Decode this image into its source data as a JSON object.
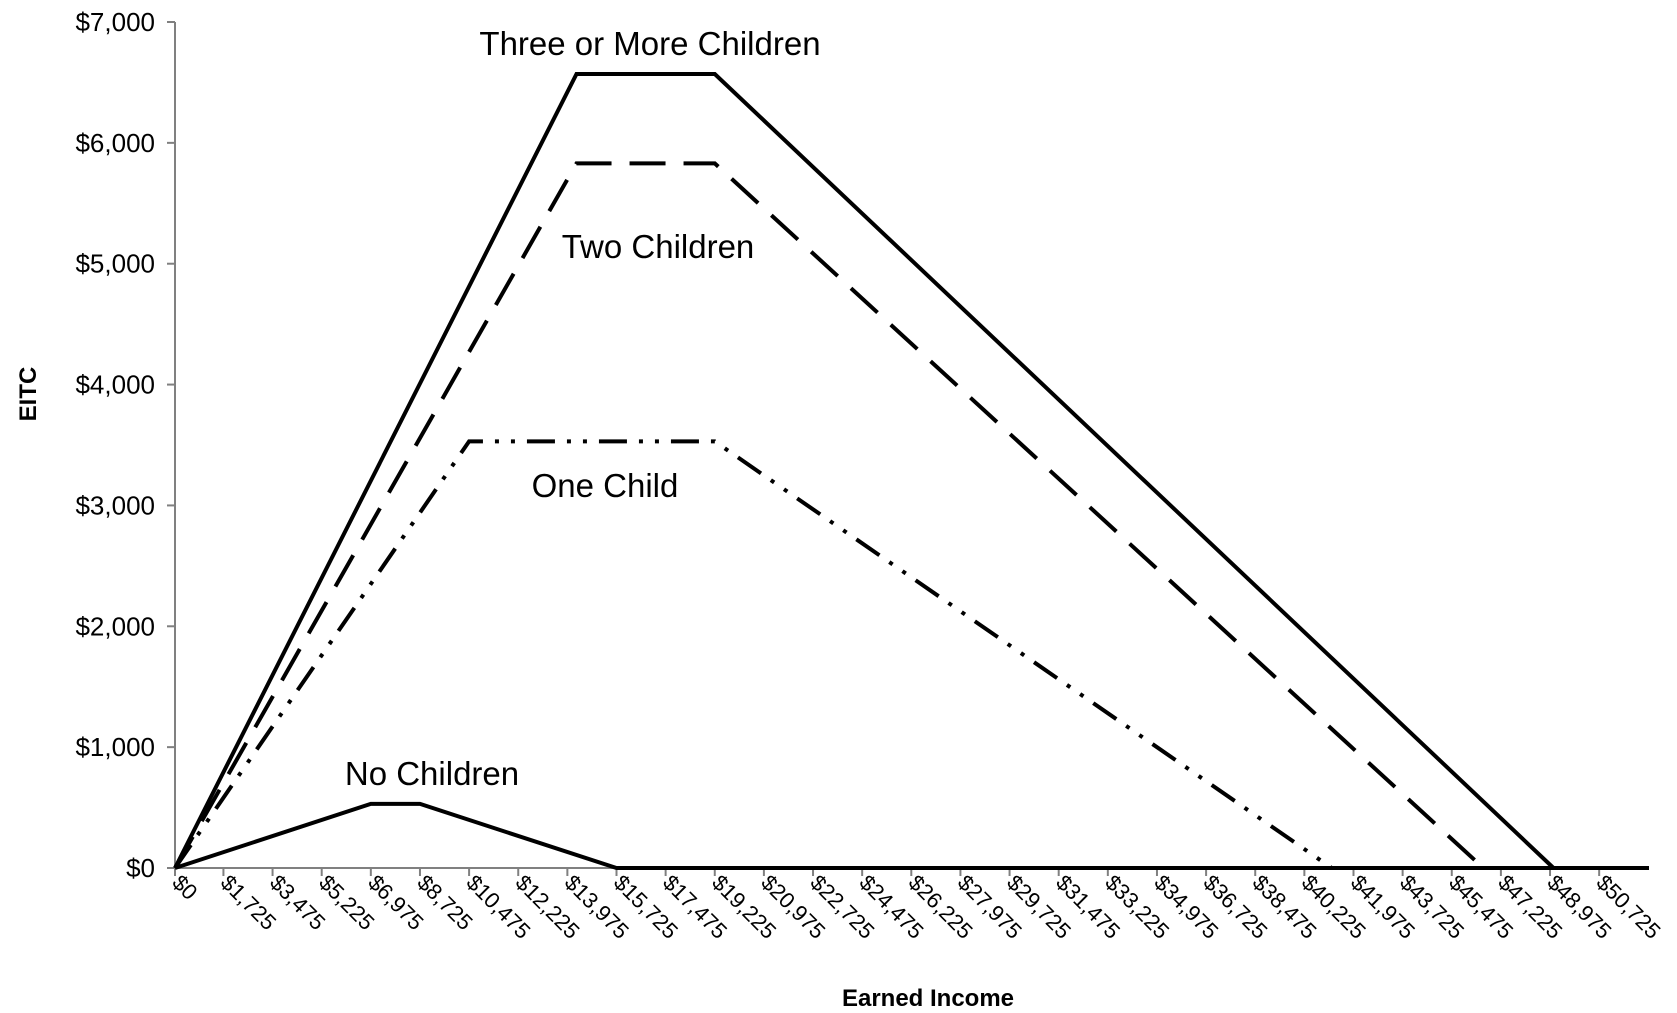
{
  "chart_data": {
    "type": "line",
    "title": "",
    "xlabel": "Earned Income",
    "ylabel": "EITC",
    "xlim": [
      0,
      52500
    ],
    "ylim": [
      0,
      7000
    ],
    "grid": false,
    "legend": "none",
    "y_ticks": [
      0,
      1000,
      2000,
      3000,
      4000,
      5000,
      6000,
      7000
    ],
    "y_tick_labels": [
      "$0",
      "$1,000",
      "$2,000",
      "$3,000",
      "$4,000",
      "$5,000",
      "$6,000",
      "$7,000"
    ],
    "x_ticks": [
      0,
      1725,
      3475,
      5225,
      6975,
      8725,
      10475,
      12225,
      13975,
      15725,
      17475,
      19225,
      20975,
      22725,
      24475,
      26225,
      27975,
      29725,
      31475,
      33225,
      34975,
      36725,
      38475,
      40225,
      41975,
      43725,
      45475,
      47225,
      48975,
      50725
    ],
    "x_tick_labels": [
      "$0",
      "$1,725",
      "$3,475",
      "$5,225",
      "$6,975",
      "$8,725",
      "$10,475",
      "$12,225",
      "$13,975",
      "$15,725",
      "$17,475",
      "$19,225",
      "$20,975",
      "$22,725",
      "$24,475",
      "$26,225",
      "$27,975",
      "$29,725",
      "$31,475",
      "$33,225",
      "$34,975",
      "$36,725",
      "$38,475",
      "$40,225",
      "$41,975",
      "$43,725",
      "$45,475",
      "$47,225",
      "$48,975",
      "$50,725"
    ],
    "series": [
      {
        "name": "No Children",
        "line_style": "solid",
        "color": "#000000",
        "points": [
          [
            0,
            0
          ],
          [
            6975,
            530
          ],
          [
            8725,
            530
          ],
          [
            15725,
            0
          ],
          [
            52500,
            0
          ]
        ]
      },
      {
        "name": "One Child",
        "line_style": "dash-dot-dot",
        "color": "#000000",
        "points": [
          [
            0,
            0
          ],
          [
            10475,
            3530
          ],
          [
            19225,
            3530
          ],
          [
            41200,
            0
          ]
        ]
      },
      {
        "name": "Two Children",
        "line_style": "dashed",
        "color": "#000000",
        "points": [
          [
            0,
            0
          ],
          [
            14300,
            5830
          ],
          [
            19225,
            5830
          ],
          [
            46600,
            0
          ]
        ]
      },
      {
        "name": "Three or More Children",
        "line_style": "solid",
        "color": "#000000",
        "points": [
          [
            0,
            0
          ],
          [
            14300,
            6570
          ],
          [
            19225,
            6570
          ],
          [
            49100,
            0
          ]
        ]
      }
    ]
  }
}
